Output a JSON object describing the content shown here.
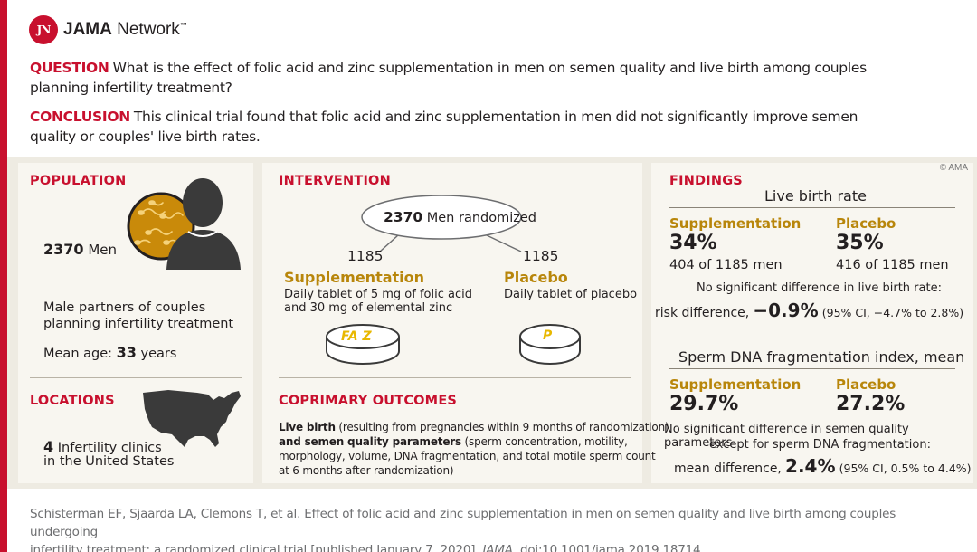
{
  "brand": {
    "name": "JAMA Network",
    "name_bold": "JAMA",
    "name_rest": " Network",
    "trademark": "™",
    "mark": "JN"
  },
  "question": {
    "keyword": "QUESTION",
    "text": "What is the effect of folic acid and zinc supplementation in men on semen quality and live birth among couples planning infertility treatment?"
  },
  "conclusion": {
    "keyword": "CONCLUSION",
    "text": "This clinical trial found that folic acid and zinc supplementation in men did not significantly improve semen quality or couples' live birth rates."
  },
  "copyright": "© AMA",
  "population": {
    "title": "POPULATION",
    "count": "2370",
    "count_unit": "Men",
    "desc_line1": "Male partners of couples",
    "desc_line2": "planning infertility treatment",
    "mean_age_label": "Mean age:",
    "mean_age_value": "33",
    "mean_age_unit": "years"
  },
  "locations": {
    "title": "LOCATIONS",
    "count": "4",
    "line1": "Infertility clinics",
    "line2": "in the United States"
  },
  "intervention": {
    "title": "INTERVENTION",
    "randomized_count": "2370",
    "randomized_label": "Men randomized",
    "arm1": {
      "n": "1185",
      "name": "Supplementation",
      "desc_line1": "Daily tablet of 5 mg of folic acid",
      "desc_line2": "and 30 mg of elemental zinc",
      "pill_label": "FA Z"
    },
    "arm2": {
      "n": "1185",
      "name": "Placebo",
      "desc_line1": "Daily tablet of placebo",
      "pill_label": "P"
    }
  },
  "outcomes": {
    "title": "COPRIMARY OUTCOMES",
    "line1_bold": "Live birth",
    "line1_rest": " (resulting from pregnancies within 9 months of randomization)",
    "line2_bold": "and semen quality parameters",
    "line2_rest": " (sperm concentration, motility,",
    "line3": "morphology, volume, DNA fragmentation, and total motile sperm count",
    "line4": "at 6 months after randomization)"
  },
  "findings": {
    "title": "FINDINGS",
    "live_birth": {
      "heading": "Live birth rate",
      "supp_label": "Supplementation",
      "supp_pct": "34%",
      "supp_detail": "404 of 1185 men",
      "plac_label": "Placebo",
      "plac_pct": "35%",
      "plac_detail": "416 of 1185 men",
      "note": "No significant difference in live birth rate:",
      "rd_label": "risk difference,",
      "rd_value": "−0.9%",
      "rd_ci": "(95% CI, −4.7% to 2.8%)"
    },
    "sperm": {
      "heading": "Sperm DNA fragmentation index, mean",
      "supp_label": "Supplementation",
      "supp_value": "29.7%",
      "plac_label": "Placebo",
      "plac_value": "27.2%",
      "note_line1": "No significant difference in semen quality parameters",
      "note_line2": "except for sperm DNA fragmentation:",
      "md_label": "mean difference,",
      "md_value": "2.4%",
      "md_ci": "(95% CI, 0.5% to 4.4%)"
    }
  },
  "citation": {
    "line1": "Schisterman EF, Sjaarda LA, Clemons T, et al. Effect of folic acid and zinc supplementation in men on semen quality and live birth among couples undergoing",
    "line2_pre": "infertility treatment: a randomized clinical trial [published January 7, 2020]. ",
    "journal": "JAMA",
    "line2_post": ". doi:10.1001/jama.2019.18714"
  },
  "colors": {
    "accent": "#c8102e",
    "gold": "#b8860b",
    "panel": "#f8f6f0",
    "band": "#eeebe2"
  }
}
